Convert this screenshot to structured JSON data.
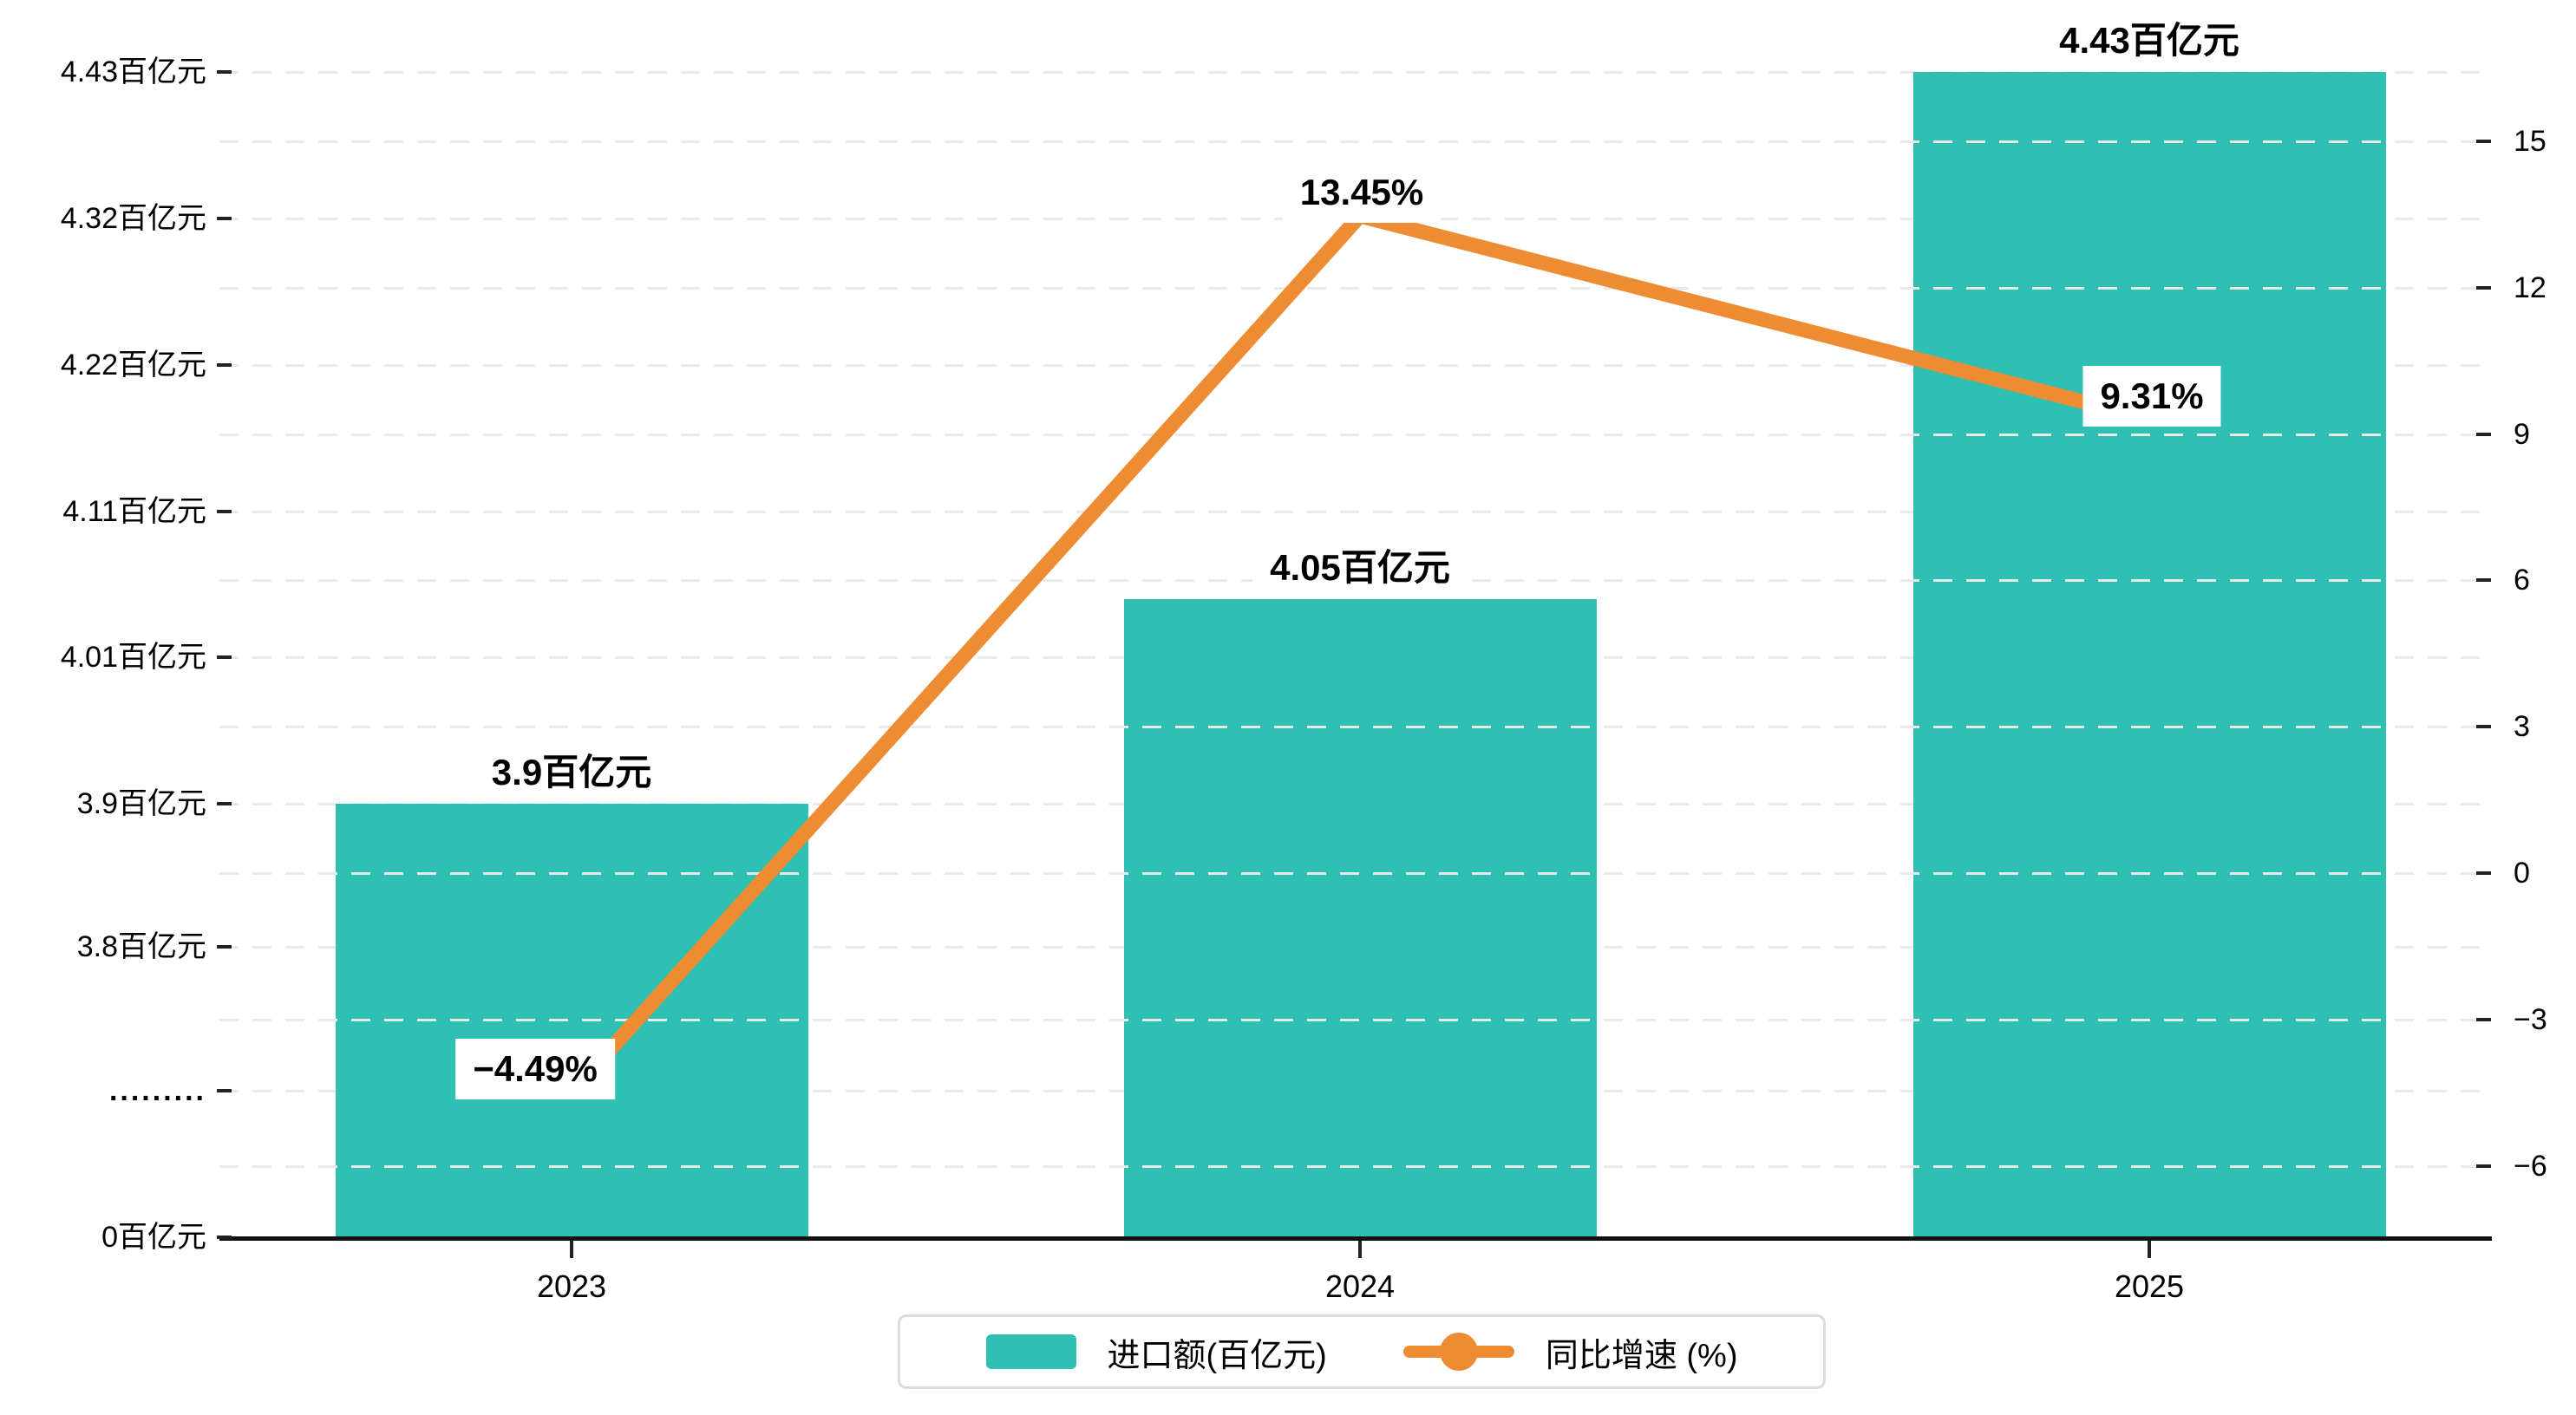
{
  "chart_data": {
    "type": "bar",
    "categories": [
      "2023",
      "2024",
      "2025"
    ],
    "series": [
      {
        "name": "进口额(百亿元)",
        "type": "bar",
        "axis": "left",
        "color": "#2ec0b2",
        "values": [
          3.9,
          4.05,
          4.43
        ],
        "data_labels": [
          "3.9百亿元",
          "4.05百亿元",
          "4.43百亿元"
        ]
      },
      {
        "name": "同比增速 (%)",
        "type": "line",
        "axis": "right",
        "color": "#ee8c33",
        "values": [
          -4.49,
          13.45,
          9.31
        ],
        "data_labels": [
          "−4.49%",
          "13.45%",
          "9.31%"
        ]
      }
    ],
    "left_axis": {
      "tick_labels": [
        "4.43百亿元",
        "4.32百亿元",
        "4.22百亿元",
        "4.11百亿元",
        "4.01百亿元",
        "3.9百亿元",
        "3.8百亿元",
        ".........",
        "0百亿元"
      ],
      "tick_values": [
        4.43,
        4.32,
        4.22,
        4.11,
        4.01,
        3.9,
        3.8,
        null,
        0
      ],
      "has_break": true
    },
    "right_axis": {
      "tick_labels": [
        "15",
        "12",
        "9",
        "6",
        "3",
        "0",
        "−3",
        "−6"
      ],
      "tick_values": [
        15,
        12,
        9,
        6,
        3,
        0,
        -3,
        -6
      ]
    },
    "legend": [
      {
        "label": "进口额(百亿元)",
        "kind": "bar"
      },
      {
        "label": "同比增速 (%)",
        "kind": "line"
      }
    ],
    "grid": "dashed",
    "legend_position": "bottom"
  },
  "colors": {
    "bar": "#2ec0b2",
    "line": "#ee8c33",
    "gridline": "#e9e9e9",
    "axis": "#111111",
    "text": "#000000",
    "legend_border": "#dcdcdc",
    "background": "#ffffff"
  }
}
